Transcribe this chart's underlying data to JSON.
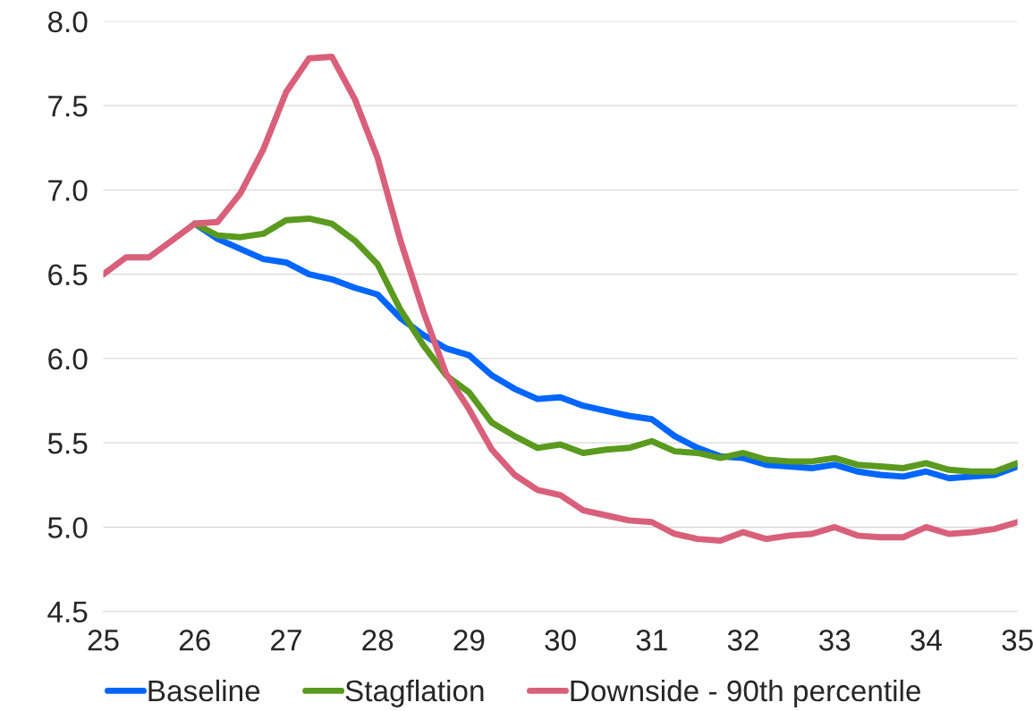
{
  "chart_data": {
    "type": "line",
    "x": [
      25,
      25.25,
      25.5,
      25.75,
      26,
      26.25,
      26.5,
      26.75,
      27,
      27.25,
      27.5,
      27.75,
      28,
      28.25,
      28.5,
      28.75,
      29,
      29.25,
      29.5,
      29.75,
      30,
      30.25,
      30.5,
      30.75,
      31,
      31.25,
      31.5,
      31.75,
      32,
      32.25,
      32.5,
      32.75,
      33,
      33.25,
      33.5,
      33.75,
      34,
      34.25,
      34.5,
      34.75,
      35
    ],
    "series": [
      {
        "name": "Baseline",
        "color": "#0066ff",
        "values": [
          null,
          null,
          null,
          null,
          6.8,
          6.71,
          6.65,
          6.59,
          6.57,
          6.5,
          6.47,
          6.42,
          6.38,
          6.24,
          6.14,
          6.06,
          6.02,
          5.9,
          5.82,
          5.76,
          5.77,
          5.72,
          5.69,
          5.66,
          5.64,
          5.54,
          5.47,
          5.42,
          5.41,
          5.37,
          5.36,
          5.35,
          5.37,
          5.33,
          5.31,
          5.3,
          5.33,
          5.29,
          5.3,
          5.31,
          5.36
        ]
      },
      {
        "name": "Stagflation",
        "color": "#5a9a1e",
        "values": [
          null,
          null,
          null,
          null,
          6.8,
          6.73,
          6.72,
          6.74,
          6.82,
          6.83,
          6.8,
          6.7,
          6.56,
          6.29,
          6.08,
          5.9,
          5.8,
          5.62,
          5.54,
          5.47,
          5.49,
          5.44,
          5.46,
          5.47,
          5.51,
          5.45,
          5.44,
          5.41,
          5.44,
          5.4,
          5.39,
          5.39,
          5.41,
          5.37,
          5.36,
          5.35,
          5.38,
          5.34,
          5.33,
          5.33,
          5.38
        ]
      },
      {
        "name": "Downside - 90th percentile",
        "color": "#d9607a",
        "values": [
          6.5,
          6.6,
          6.6,
          6.7,
          6.8,
          6.81,
          6.98,
          7.24,
          7.58,
          7.78,
          7.79,
          7.54,
          7.19,
          6.7,
          6.28,
          5.91,
          5.7,
          5.46,
          5.31,
          5.22,
          5.19,
          5.1,
          5.07,
          5.04,
          5.03,
          4.96,
          4.93,
          4.92,
          4.97,
          4.93,
          4.95,
          4.96,
          5.0,
          4.95,
          4.94,
          4.94,
          5.0,
          4.96,
          4.97,
          4.99,
          5.03
        ]
      }
    ],
    "xlim": [
      25,
      35
    ],
    "xticks": [
      25,
      26,
      27,
      28,
      29,
      30,
      31,
      32,
      33,
      34,
      35
    ],
    "ylim": [
      4.5,
      8.0
    ],
    "yticks": [
      {
        "value": 4.5,
        "label": "4.5"
      },
      {
        "value": 5.0,
        "label": "5.0"
      },
      {
        "value": 5.5,
        "label": "5.5"
      },
      {
        "value": 6.0,
        "label": "6.0"
      },
      {
        "value": 6.5,
        "label": "6.5"
      },
      {
        "value": 7.0,
        "label": "7.0"
      },
      {
        "value": 7.5,
        "label": "7.5"
      },
      {
        "value": 8.0,
        "label": "8.0"
      }
    ],
    "grid": "y",
    "legend": "bottom",
    "line_style": "solid",
    "marker": "none"
  }
}
